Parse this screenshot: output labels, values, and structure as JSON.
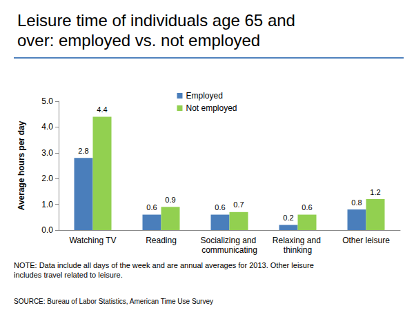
{
  "chart_data": {
    "type": "bar",
    "title": "Leisure time of individuals age 65 and over: employed vs. not employed",
    "y_label": "Average hours per day",
    "categories": [
      "Watching TV",
      "Reading",
      "Socializing and communicating",
      "Relaxing and thinking",
      "Other leisure"
    ],
    "series": [
      {
        "name": "Employed",
        "color": "#4a7ebb",
        "values": [
          2.8,
          0.6,
          0.6,
          0.2,
          0.8
        ]
      },
      {
        "name": "Not employed",
        "color": "#92d050",
        "values": [
          4.4,
          0.9,
          0.7,
          0.6,
          1.2
        ]
      }
    ],
    "ylim": [
      0,
      5
    ],
    "yticks": [
      {
        "value": 0,
        "label": "0.0"
      },
      {
        "value": 1,
        "label": "1.0"
      },
      {
        "value": 2,
        "label": "2.0"
      },
      {
        "value": 3,
        "label": "3.0"
      },
      {
        "value": 4,
        "label": "4.0"
      },
      {
        "value": 5,
        "label": "5.0"
      }
    ],
    "grid": false,
    "legend": "top",
    "data_labels": true,
    "note": "NOTE: Data include all days of the week and are annual averages for 2013. Other leisure includes travel related to leisure.",
    "source": "SOURCE: Bureau of Labor Statistics, American Time Use Survey"
  }
}
